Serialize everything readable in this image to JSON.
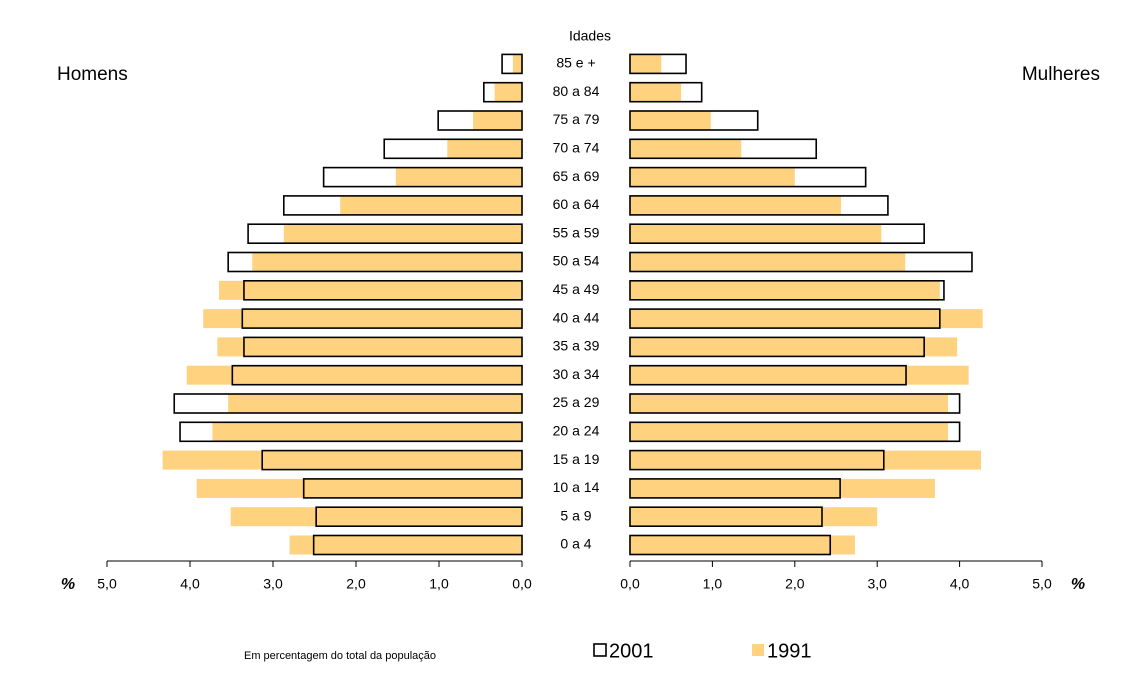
{
  "chart_data": {
    "type": "population_pyramid",
    "category_label": "Idades",
    "left_label": "Homens",
    "right_label": "Mulheres",
    "x_unit": "%",
    "note": "Em percentagem do total da população",
    "categories": [
      "0 a 4",
      "5 a 9",
      "10 a 14",
      "15 a 19",
      "20 a 24",
      "25 a 29",
      "30 a 34",
      "35 a 39",
      "40 a 44",
      "45 a 49",
      "50 a 54",
      "55 a 59",
      "60 a 64",
      "65 a 69",
      "70 a 74",
      "75 a 79",
      "80 a 84",
      "85 e +"
    ],
    "series": [
      {
        "name": "2001",
        "color": "#000000",
        "style": "outline",
        "homens": [
          2.51,
          2.48,
          2.63,
          3.13,
          4.12,
          4.19,
          3.49,
          3.35,
          3.37,
          3.35,
          3.54,
          3.3,
          2.87,
          2.39,
          1.66,
          1.01,
          0.46,
          0.24
        ],
        "mulheres": [
          2.43,
          2.33,
          2.55,
          3.08,
          4.0,
          4.0,
          3.35,
          3.57,
          3.76,
          3.81,
          4.15,
          3.57,
          3.13,
          2.86,
          2.26,
          1.55,
          0.87,
          0.68
        ]
      },
      {
        "name": "1991",
        "color": "#ffd280",
        "style": "fill",
        "homens": [
          2.8,
          3.51,
          3.92,
          4.33,
          3.73,
          3.54,
          4.04,
          3.67,
          3.84,
          3.65,
          3.25,
          2.87,
          2.19,
          1.52,
          0.9,
          0.59,
          0.33,
          0.11
        ],
        "mulheres": [
          2.73,
          3.0,
          3.7,
          4.26,
          3.86,
          3.86,
          4.11,
          3.97,
          4.28,
          3.76,
          3.34,
          3.05,
          2.56,
          2.0,
          1.35,
          0.98,
          0.62,
          0.38
        ]
      }
    ],
    "xlim": [
      0,
      5
    ],
    "xticks": [
      {
        "value": 0,
        "label": "0,0"
      },
      {
        "value": 1,
        "label": "1,0"
      },
      {
        "value": 2,
        "label": "2,0"
      },
      {
        "value": 3,
        "label": "3,0"
      },
      {
        "value": 4,
        "label": "4,0"
      },
      {
        "value": 5,
        "label": "5,0"
      }
    ],
    "x2ticks": [
      {
        "value": 0,
        "label": "0,0"
      },
      {
        "value": 1,
        "label": "1,0"
      },
      {
        "value": 2,
        "label": "2,0"
      },
      {
        "value": 3,
        "label": "3,0"
      },
      {
        "value": 4,
        "label": "4,0"
      },
      {
        "value": 5,
        "label": "5,0"
      }
    ]
  }
}
